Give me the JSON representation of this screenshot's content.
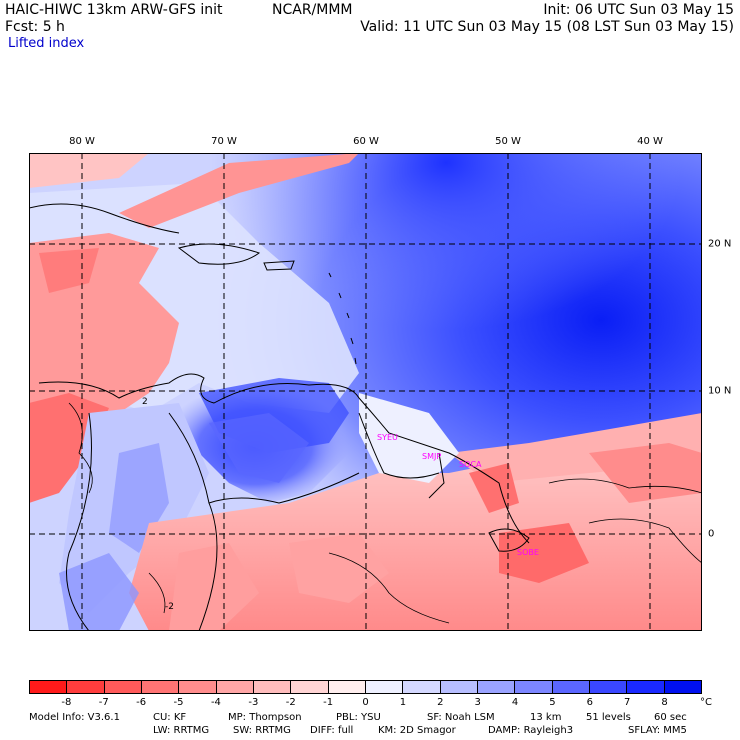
{
  "header": {
    "model_title": "HAIC-HIWC 13km ARW-GFS init",
    "org": "NCAR/MMM",
    "init": "Init: 06 UTC Sun 03 May 15",
    "fcst": "Fcst:    5 h",
    "valid": "Valid: 11 UTC Sun 03 May 15 (08 LST Sun 03 May 15)",
    "field": "Lifted index"
  },
  "map": {
    "lon_labels": [
      "80 W",
      "70 W",
      "60 W",
      "50 W",
      "40 W"
    ],
    "lat_labels": [
      "20 N",
      "10 N",
      "0"
    ],
    "stations": [
      "SYEU",
      "SMJP",
      "SOCA",
      "SOBE"
    ],
    "station_color": "#ff00ff",
    "contour_labels": [
      "2",
      "-2"
    ]
  },
  "colorbar": {
    "labels": [
      "-8",
      "-7",
      "-6",
      "-5",
      "-4",
      "-3",
      "-2",
      "-1",
      "0",
      "1",
      "2",
      "3",
      "4",
      "5",
      "6",
      "7",
      "8"
    ],
    "unit": "°C",
    "colors": [
      "#ff1a1a",
      "#ff3d3d",
      "#ff5a5a",
      "#ff7474",
      "#ff8d8d",
      "#ffa6a6",
      "#ffbdbd",
      "#ffd4d4",
      "#ffeeee",
      "#eef0ff",
      "#d4d8ff",
      "#b7beff",
      "#9aa3ff",
      "#7c86ff",
      "#5b66ff",
      "#3a47ff",
      "#1a29ff",
      "#0010f0"
    ]
  },
  "footer": {
    "line1": [
      "Model Info: V3.6.1",
      "CU: KF",
      "MP: Thompson",
      "PBL: YSU",
      "SF: Noah LSM",
      "13 km",
      "51 levels",
      "60 sec"
    ],
    "line2": [
      "LW: RRTMG",
      "SW: RRTMG",
      "DIFF: full",
      "KM: 2D Smagor",
      "DAMP: Rayleigh3",
      "SFLAY: MM5"
    ]
  }
}
